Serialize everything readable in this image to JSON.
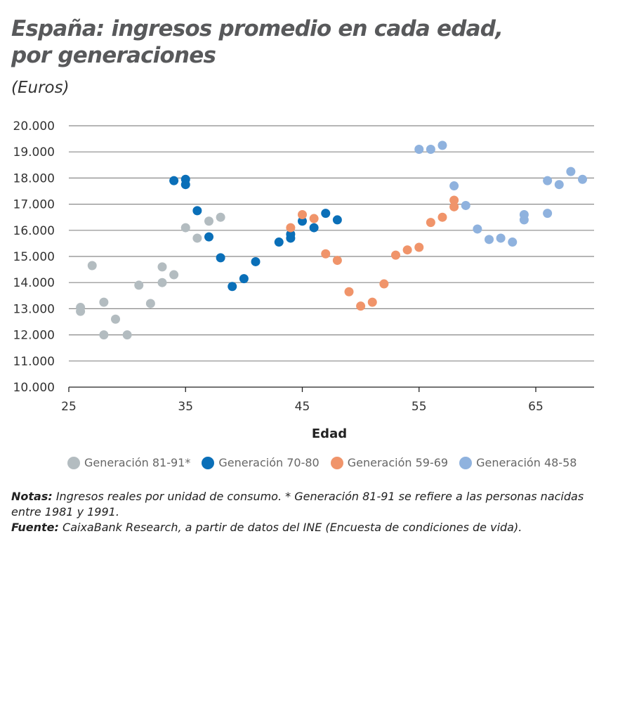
{
  "chart_data": {
    "type": "scatter",
    "title": "España: ingresos promedio en cada edad, por generaciones",
    "subtitle": "(Euros)",
    "xlabel": "Edad",
    "ylabel": "",
    "xlim": [
      25,
      70
    ],
    "ylim": [
      10000,
      20000
    ],
    "xticks": [
      25,
      35,
      45,
      55,
      65
    ],
    "xtick_labels": [
      "25",
      "35",
      "45",
      "55",
      "65"
    ],
    "yticks": [
      10000,
      11000,
      12000,
      13000,
      14000,
      15000,
      16000,
      17000,
      18000,
      19000,
      20000
    ],
    "ytick_labels": [
      "10.000",
      "11.000",
      "12.000",
      "13.000",
      "14.000",
      "15.000",
      "16.000",
      "17.000",
      "18.000",
      "19.000",
      "20.000"
    ],
    "grid": "horizontal",
    "legend_position": "bottom",
    "series": [
      {
        "name": "Generación 81-91*",
        "color": "#b3bcc0",
        "points": [
          [
            26,
            13050
          ],
          [
            26,
            12900
          ],
          [
            27,
            14650
          ],
          [
            28,
            13250
          ],
          [
            28,
            12000
          ],
          [
            29,
            12600
          ],
          [
            30,
            12000
          ],
          [
            31,
            13900
          ],
          [
            32,
            13200
          ],
          [
            33,
            14600
          ],
          [
            33,
            14000
          ],
          [
            34,
            14300
          ],
          [
            35,
            16100
          ],
          [
            36,
            15700
          ],
          [
            37,
            16350
          ],
          [
            38,
            16500
          ]
        ]
      },
      {
        "name": "Generación 70-80",
        "color": "#0a6fb8",
        "points": [
          [
            34,
            17900
          ],
          [
            35,
            17950
          ],
          [
            35,
            17750
          ],
          [
            36,
            16750
          ],
          [
            37,
            15750
          ],
          [
            38,
            14950
          ],
          [
            39,
            13850
          ],
          [
            40,
            14150
          ],
          [
            41,
            14800
          ],
          [
            43,
            15550
          ],
          [
            44,
            15850
          ],
          [
            44,
            15700
          ],
          [
            45,
            16350
          ],
          [
            46,
            16100
          ],
          [
            47,
            16650
          ],
          [
            48,
            16400
          ]
        ]
      },
      {
        "name": "Generación 59-69",
        "color": "#f0946a",
        "points": [
          [
            44,
            16100
          ],
          [
            45,
            16600
          ],
          [
            46,
            16450
          ],
          [
            47,
            15100
          ],
          [
            48,
            14850
          ],
          [
            49,
            13650
          ],
          [
            50,
            13100
          ],
          [
            51,
            13250
          ],
          [
            52,
            13950
          ],
          [
            53,
            15050
          ],
          [
            54,
            15250
          ],
          [
            55,
            15350
          ],
          [
            56,
            16300
          ],
          [
            57,
            16500
          ],
          [
            58,
            17150
          ],
          [
            58,
            16900
          ]
        ]
      },
      {
        "name": "Generación 48-58",
        "color": "#8fb2de",
        "points": [
          [
            55,
            19100
          ],
          [
            56,
            19100
          ],
          [
            57,
            19250
          ],
          [
            58,
            17700
          ],
          [
            59,
            16950
          ],
          [
            60,
            16050
          ],
          [
            61,
            15650
          ],
          [
            62,
            15700
          ],
          [
            63,
            15550
          ],
          [
            64,
            16600
          ],
          [
            64,
            16400
          ],
          [
            66,
            17900
          ],
          [
            66,
            16650
          ],
          [
            67,
            17750
          ],
          [
            68,
            18250
          ],
          [
            69,
            17950
          ]
        ]
      }
    ]
  },
  "header": {
    "title_line1": "España: ingresos promedio en cada edad,",
    "title_line2": "por generaciones",
    "subtitle": "(Euros)"
  },
  "notes": {
    "notes_label": "Notas:",
    "notes_text": " Ingresos reales por unidad de consumo. * Generación 81-91 se refiere a las personas nacidas entre 1981 y 1991.",
    "source_label": "Fuente:",
    "source_text": " CaixaBank Research, a partir de datos del INE (Encuesta de condiciones de vida)."
  }
}
